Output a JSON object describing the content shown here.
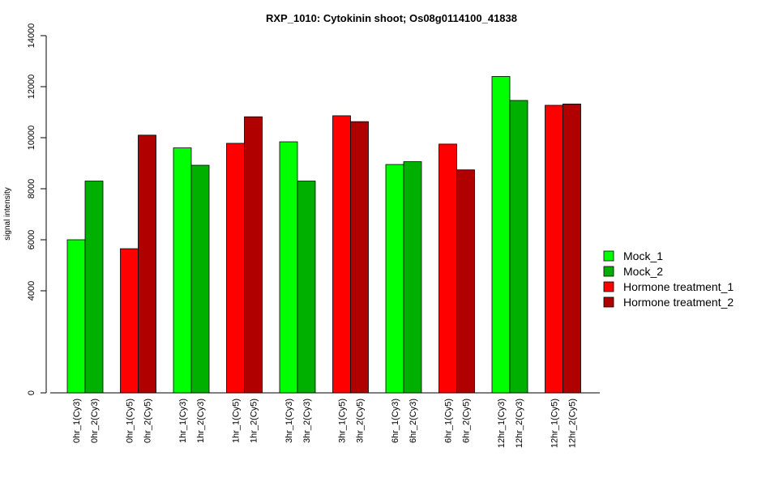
{
  "chart_data": {
    "type": "bar",
    "title": "RXP_1010: Cytokinin shoot; Os08g0114100_41838",
    "xlabel": "",
    "ylabel": "signal intensity",
    "ylim": [
      0,
      14000
    ],
    "yticks": [
      0,
      4000,
      6000,
      8000,
      10000,
      12000,
      14000
    ],
    "ytick_labels": [
      "0",
      "4000",
      "6000",
      "8000",
      "10000",
      "12000",
      "14000"
    ],
    "grid": false,
    "legend_position": "right",
    "bars": [
      {
        "label": "0hr_1(Cy3)",
        "value": 6000,
        "series": 0
      },
      {
        "label": "0hr_2(Cy3)",
        "value": 8300,
        "series": 1
      },
      {
        "label": "0hr_1(Cy5)",
        "value": 5650,
        "series": 2
      },
      {
        "label": "0hr_2(Cy5)",
        "value": 10100,
        "series": 3
      },
      {
        "label": "1hr_1(Cy3)",
        "value": 9600,
        "series": 0
      },
      {
        "label": "1hr_2(Cy3)",
        "value": 8920,
        "series": 1
      },
      {
        "label": "1hr_1(Cy5)",
        "value": 9780,
        "series": 2
      },
      {
        "label": "1hr_2(Cy5)",
        "value": 10820,
        "series": 3
      },
      {
        "label": "3hr_1(Cy3)",
        "value": 9840,
        "series": 0
      },
      {
        "label": "3hr_2(Cy3)",
        "value": 8300,
        "series": 1
      },
      {
        "label": "3hr_1(Cy5)",
        "value": 10860,
        "series": 2
      },
      {
        "label": "3hr_2(Cy5)",
        "value": 10630,
        "series": 3
      },
      {
        "label": "6hr_1(Cy3)",
        "value": 8950,
        "series": 0
      },
      {
        "label": "6hr_2(Cy3)",
        "value": 9060,
        "series": 1
      },
      {
        "label": "6hr_1(Cy5)",
        "value": 9750,
        "series": 2
      },
      {
        "label": "6hr_2(Cy5)",
        "value": 8740,
        "series": 3
      },
      {
        "label": "12hr_1(Cy3)",
        "value": 12400,
        "series": 0
      },
      {
        "label": "12hr_2(Cy3)",
        "value": 11460,
        "series": 1
      },
      {
        "label": "12hr_1(Cy5)",
        "value": 11270,
        "series": 2
      },
      {
        "label": "12hr_2(Cy5)",
        "value": 11320,
        "series": 3
      }
    ],
    "series": [
      {
        "name": "Mock_1",
        "color": "#00ff00"
      },
      {
        "name": "Mock_2",
        "color": "#00b000"
      },
      {
        "name": "Hormone treatment_1",
        "color": "#ff0000"
      },
      {
        "name": "Hormone treatment_2",
        "color": "#b00000"
      }
    ]
  }
}
